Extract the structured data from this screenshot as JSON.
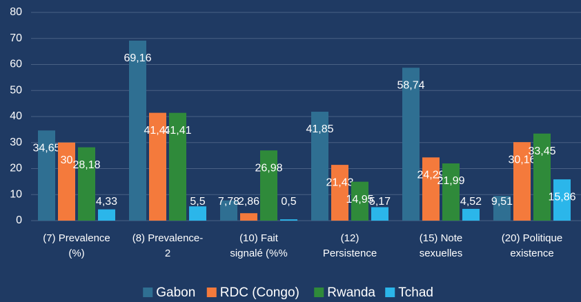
{
  "chart_data": {
    "type": "bar",
    "categories": [
      "(7) Prevalence\n(%)",
      "(8) Prevalence-\n2",
      "(10) Fait\nsignalé (%%",
      "(12)\nPersistence",
      "(15) Note\nsexuelles",
      "(20) Politique\nexistence"
    ],
    "series": [
      {
        "name": "Gabon",
        "color": "#2f6f92",
        "values": [
          34.65,
          69.16,
          7.78,
          41.85,
          58.74,
          9.51
        ],
        "value_labels": [
          "34,65",
          "69,16",
          "7,78",
          "41,85",
          "58,74",
          "9,51"
        ]
      },
      {
        "name": "RDC (Congo)",
        "color": "#f47a3c",
        "values": [
          30,
          41.43,
          2.86,
          21.43,
          24.29,
          30.16
        ],
        "value_labels": [
          "30",
          "41,43",
          "2,86",
          "21,43",
          "24,29",
          "30,16"
        ]
      },
      {
        "name": "Rwanda",
        "color": "#2f8a3a",
        "values": [
          28.18,
          41.41,
          26.98,
          14.95,
          21.99,
          33.45
        ],
        "value_labels": [
          "28,18",
          "41,41",
          "26,98",
          "14,95",
          "21,99",
          "33,45"
        ]
      },
      {
        "name": "Tchad",
        "color": "#2bb6ea",
        "values": [
          4.33,
          5.5,
          0.5,
          5.17,
          4.52,
          15.86
        ],
        "value_labels": [
          "4,33",
          "5,5",
          "0,5",
          "5,17",
          "4,52",
          "15,86"
        ]
      }
    ],
    "ylim": [
      0,
      80
    ],
    "yticks": [
      0,
      10,
      20,
      30,
      40,
      50,
      60,
      70,
      80
    ],
    "grid": true,
    "legend": "bottom"
  }
}
